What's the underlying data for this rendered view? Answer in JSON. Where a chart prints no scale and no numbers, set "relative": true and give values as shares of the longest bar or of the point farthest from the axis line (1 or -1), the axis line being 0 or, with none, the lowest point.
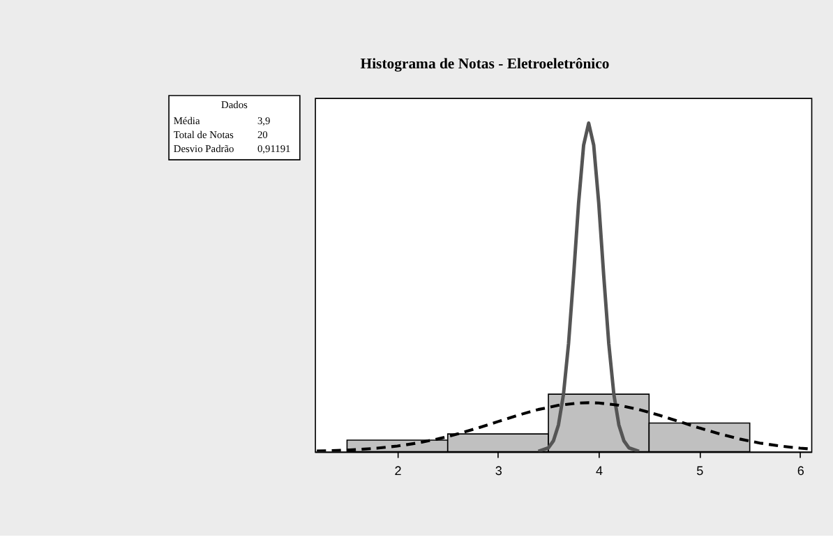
{
  "chart_data": {
    "type": "histogram",
    "title": "Histograma de Notas - Eletroeletrônico",
    "relative": true,
    "bins": [
      1.5,
      2.5,
      3.5,
      4.5,
      5.5
    ],
    "values": [
      0.035,
      0.054,
      0.175,
      0.087
    ],
    "color": "#c0c0c0",
    "xlim": [
      1.18,
      6.11
    ],
    "xticks": [
      2,
      3,
      4,
      5,
      6
    ],
    "grid": false,
    "legend": false,
    "marker": "none",
    "series": [
      {
        "type": "line",
        "line_style": "solid",
        "color": "#555555",
        "x": [
          3.4,
          3.5,
          3.55,
          3.6,
          3.65,
          3.7,
          3.75,
          3.8,
          3.85,
          3.9,
          3.95,
          4.0,
          4.05,
          4.1,
          4.15,
          4.2,
          4.25,
          4.3,
          4.4
        ],
        "values": [
          0.0009,
          0.0115,
          0.0328,
          0.0813,
          0.175,
          0.328,
          0.534,
          0.757,
          0.933,
          1,
          0.933,
          0.757,
          0.534,
          0.328,
          0.175,
          0.0813,
          0.0328,
          0.0115,
          0.0009
        ]
      },
      {
        "type": "line",
        "line_style": "dashed",
        "color": "#000000",
        "x": [
          1.2,
          1.4,
          1.6,
          1.8,
          2.0,
          2.2,
          2.4,
          2.6,
          2.8,
          3.0,
          3.2,
          3.4,
          3.6,
          3.8,
          3.9,
          4.0,
          4.2,
          4.4,
          4.6,
          4.8,
          5.0,
          5.2,
          5.4,
          5.6,
          5.8,
          6.0,
          6.1
        ],
        "values": [
          0.0019,
          0.0035,
          0.0062,
          0.0105,
          0.017,
          0.0262,
          0.0385,
          0.0539,
          0.072,
          0.0916,
          0.111,
          0.1282,
          0.1411,
          0.1481,
          0.149,
          0.1481,
          0.1411,
          0.1282,
          0.111,
          0.0916,
          0.072,
          0.0539,
          0.0385,
          0.0262,
          0.017,
          0.0105,
          0.0081
        ]
      }
    ],
    "annotations": [
      "Dados",
      "Média",
      "3,9",
      "Total de Notas",
      "20",
      "Desvio Padrão",
      "0,91191"
    ]
  }
}
